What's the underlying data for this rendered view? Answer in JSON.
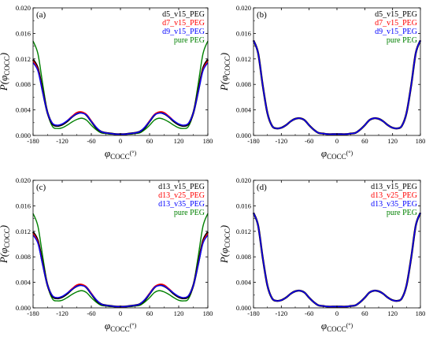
{
  "chart_data": [
    {
      "type": "line",
      "panel_label": "(a)",
      "x_ticks": [
        "-180",
        "-120",
        "-60",
        "0",
        "60",
        "120",
        "180"
      ],
      "y_ticks": [
        "0.000",
        "0.004",
        "0.008",
        "0.012",
        "0.016",
        "0.020"
      ],
      "xlim": [
        -180,
        180
      ],
      "ylim": [
        0,
        0.02
      ],
      "xlabel_main": "φ",
      "xlabel_sub": "COCC",
      "xlabel_unit": "(°)",
      "ylabel_main": "P(φ",
      "ylabel_sub": "COCC",
      "ylabel_close": ")",
      "legend_position": "top-right",
      "x": [
        -180,
        -170,
        -160,
        -150,
        -140,
        -130,
        -120,
        -110,
        -100,
        -90,
        -80,
        -70,
        -60,
        -50,
        -40,
        -30,
        -20,
        -10,
        0,
        10,
        20,
        30,
        40,
        50,
        60,
        70,
        80,
        90,
        100,
        110,
        120,
        130,
        140,
        150,
        160,
        170,
        180
      ],
      "series": [
        {
          "name": "d5_v15_PEG",
          "color": "#000000",
          "values": [
            0.0119,
            0.0105,
            0.0069,
            0.0035,
            0.0018,
            0.0015,
            0.0017,
            0.0022,
            0.0029,
            0.0034,
            0.0036,
            0.0032,
            0.0022,
            0.0012,
            0.0006,
            0.0004,
            0.0003,
            0.0002,
            0.0002,
            0.0002,
            0.0003,
            0.0004,
            0.0006,
            0.0012,
            0.0022,
            0.0032,
            0.0036,
            0.0034,
            0.0029,
            0.0022,
            0.0017,
            0.0015,
            0.0018,
            0.0035,
            0.0069,
            0.0105,
            0.0119
          ]
        },
        {
          "name": "d7_v15_PEG",
          "color": "#ff0000",
          "values": [
            0.0117,
            0.0103,
            0.0068,
            0.0035,
            0.0019,
            0.0016,
            0.0018,
            0.0023,
            0.003,
            0.0036,
            0.0037,
            0.0033,
            0.0023,
            0.0013,
            0.0006,
            0.0004,
            0.0003,
            0.0002,
            0.0002,
            0.0002,
            0.0003,
            0.0004,
            0.0006,
            0.0013,
            0.0023,
            0.0033,
            0.0037,
            0.0036,
            0.003,
            0.0023,
            0.0018,
            0.0016,
            0.0019,
            0.0035,
            0.0068,
            0.0103,
            0.0117
          ]
        },
        {
          "name": "d9_v15_PEG",
          "color": "#0000ff",
          "values": [
            0.0114,
            0.0101,
            0.0067,
            0.0035,
            0.0019,
            0.0016,
            0.0018,
            0.0023,
            0.0029,
            0.0034,
            0.0035,
            0.0032,
            0.0022,
            0.0013,
            0.0006,
            0.0004,
            0.0003,
            0.0002,
            0.0002,
            0.0002,
            0.0003,
            0.0004,
            0.0006,
            0.0013,
            0.0022,
            0.0032,
            0.0035,
            0.0034,
            0.0029,
            0.0023,
            0.0018,
            0.0016,
            0.0019,
            0.0035,
            0.0067,
            0.0101,
            0.0114
          ]
        },
        {
          "name": "pure PEG",
          "color": "#008000",
          "values": [
            0.0148,
            0.0128,
            0.008,
            0.0035,
            0.0014,
            0.0011,
            0.0012,
            0.0016,
            0.0021,
            0.0025,
            0.0027,
            0.0024,
            0.0016,
            0.0009,
            0.0004,
            0.0003,
            0.0002,
            0.0002,
            0.0002,
            0.0002,
            0.0002,
            0.0003,
            0.0004,
            0.0009,
            0.0016,
            0.0024,
            0.0027,
            0.0025,
            0.0021,
            0.0016,
            0.0012,
            0.0011,
            0.0014,
            0.0035,
            0.008,
            0.0128,
            0.0148
          ]
        }
      ]
    },
    {
      "type": "line",
      "panel_label": "(b)",
      "x_ticks": [
        "-180",
        "-120",
        "-60",
        "0",
        "60",
        "120",
        "180"
      ],
      "y_ticks": [
        "0.000",
        "0.004",
        "0.008",
        "0.012",
        "0.016",
        "0.020"
      ],
      "xlim": [
        -180,
        180
      ],
      "ylim": [
        0,
        0.02
      ],
      "xlabel_main": "φ",
      "xlabel_sub": "COCC",
      "xlabel_unit": "(°)",
      "ylabel_main": "P(φ",
      "ylabel_sub": "COCC",
      "ylabel_close": ")",
      "legend_position": "top-right",
      "x": [
        -180,
        -170,
        -160,
        -150,
        -140,
        -130,
        -120,
        -110,
        -100,
        -90,
        -80,
        -70,
        -60,
        -50,
        -40,
        -30,
        -20,
        -10,
        0,
        10,
        20,
        30,
        40,
        50,
        60,
        70,
        80,
        90,
        100,
        110,
        120,
        130,
        140,
        150,
        160,
        170,
        180
      ],
      "series": [
        {
          "name": "d5_v15_PEG",
          "color": "#000000",
          "values": [
            0.0149,
            0.0129,
            0.0078,
            0.0035,
            0.0015,
            0.0011,
            0.0012,
            0.0016,
            0.0022,
            0.0026,
            0.0027,
            0.0024,
            0.0016,
            0.0009,
            0.0004,
            0.0003,
            0.0002,
            0.0002,
            0.0002,
            0.0002,
            0.0002,
            0.0003,
            0.0004,
            0.0009,
            0.0016,
            0.0024,
            0.0027,
            0.0026,
            0.0022,
            0.0016,
            0.0012,
            0.0011,
            0.0015,
            0.0035,
            0.0078,
            0.0129,
            0.0149
          ]
        },
        {
          "name": "d7_v15_PEG",
          "color": "#ff0000",
          "values": [
            0.0149,
            0.0129,
            0.0078,
            0.0035,
            0.0015,
            0.0011,
            0.0012,
            0.0016,
            0.0022,
            0.0026,
            0.0027,
            0.0024,
            0.0016,
            0.0009,
            0.0004,
            0.0003,
            0.0002,
            0.0002,
            0.0002,
            0.0002,
            0.0002,
            0.0003,
            0.0004,
            0.0009,
            0.0016,
            0.0024,
            0.0027,
            0.0026,
            0.0022,
            0.0016,
            0.0012,
            0.0011,
            0.0015,
            0.0035,
            0.0078,
            0.0129,
            0.0149
          ]
        },
        {
          "name": "d9_v15_PEG",
          "color": "#0000ff",
          "values": [
            0.0149,
            0.0129,
            0.0078,
            0.0035,
            0.0015,
            0.0011,
            0.0012,
            0.0016,
            0.0022,
            0.0026,
            0.0027,
            0.0024,
            0.0016,
            0.0009,
            0.0004,
            0.0003,
            0.0002,
            0.0002,
            0.0002,
            0.0002,
            0.0002,
            0.0003,
            0.0004,
            0.0009,
            0.0016,
            0.0024,
            0.0027,
            0.0026,
            0.0022,
            0.0016,
            0.0012,
            0.0011,
            0.0015,
            0.0035,
            0.0078,
            0.0129,
            0.0149
          ]
        },
        {
          "name": "pure PEG",
          "color": "#008000",
          "values": [
            0.0149,
            0.0129,
            0.0078,
            0.0035,
            0.0015,
            0.0011,
            0.0012,
            0.0016,
            0.0022,
            0.0026,
            0.0027,
            0.0024,
            0.0016,
            0.0009,
            0.0004,
            0.0003,
            0.0002,
            0.0002,
            0.0002,
            0.0002,
            0.0002,
            0.0003,
            0.0004,
            0.0009,
            0.0016,
            0.0024,
            0.0027,
            0.0026,
            0.0022,
            0.0016,
            0.0012,
            0.0011,
            0.0015,
            0.0035,
            0.0078,
            0.0129,
            0.0149
          ]
        }
      ]
    },
    {
      "type": "line",
      "panel_label": "(c)",
      "x_ticks": [
        "-180",
        "-120",
        "-60",
        "0",
        "60",
        "120",
        "180"
      ],
      "y_ticks": [
        "0.000",
        "0.004",
        "0.008",
        "0.012",
        "0.016",
        "0.020"
      ],
      "xlim": [
        -180,
        180
      ],
      "ylim": [
        0,
        0.02
      ],
      "xlabel_main": "φ",
      "xlabel_sub": "COCC",
      "xlabel_unit": "(°)",
      "ylabel_main": "P(φ",
      "ylabel_sub": "COCC",
      "ylabel_close": ")",
      "legend_position": "top-right",
      "x": [
        -180,
        -170,
        -160,
        -150,
        -140,
        -130,
        -120,
        -110,
        -100,
        -90,
        -80,
        -70,
        -60,
        -50,
        -40,
        -30,
        -20,
        -10,
        0,
        10,
        20,
        30,
        40,
        50,
        60,
        70,
        80,
        90,
        100,
        110,
        120,
        130,
        140,
        150,
        160,
        170,
        180
      ],
      "series": [
        {
          "name": "d13_v15_PEG",
          "color": "#000000",
          "values": [
            0.0119,
            0.0105,
            0.0069,
            0.0035,
            0.0018,
            0.0015,
            0.0017,
            0.0022,
            0.0029,
            0.0034,
            0.0036,
            0.0032,
            0.0022,
            0.0012,
            0.0006,
            0.0004,
            0.0003,
            0.0002,
            0.0002,
            0.0002,
            0.0003,
            0.0004,
            0.0006,
            0.0012,
            0.0022,
            0.0032,
            0.0036,
            0.0034,
            0.0029,
            0.0022,
            0.0017,
            0.0015,
            0.0018,
            0.0035,
            0.0069,
            0.0105,
            0.0119
          ]
        },
        {
          "name": "d13_v25_PEG",
          "color": "#ff0000",
          "values": [
            0.0117,
            0.0103,
            0.0068,
            0.0035,
            0.0019,
            0.0016,
            0.0018,
            0.0023,
            0.003,
            0.0036,
            0.0037,
            0.0033,
            0.0023,
            0.0013,
            0.0006,
            0.0004,
            0.0003,
            0.0002,
            0.0002,
            0.0002,
            0.0003,
            0.0004,
            0.0006,
            0.0013,
            0.0023,
            0.0033,
            0.0037,
            0.0036,
            0.003,
            0.0023,
            0.0018,
            0.0016,
            0.0019,
            0.0035,
            0.0068,
            0.0103,
            0.0117
          ]
        },
        {
          "name": "d13_v35_PEG",
          "color": "#0000ff",
          "values": [
            0.0114,
            0.0101,
            0.0067,
            0.0035,
            0.0019,
            0.0016,
            0.0018,
            0.0023,
            0.0029,
            0.0034,
            0.0035,
            0.0032,
            0.0022,
            0.0013,
            0.0006,
            0.0004,
            0.0003,
            0.0002,
            0.0002,
            0.0002,
            0.0003,
            0.0004,
            0.0006,
            0.0013,
            0.0022,
            0.0032,
            0.0035,
            0.0034,
            0.0029,
            0.0023,
            0.0018,
            0.0016,
            0.0019,
            0.0035,
            0.0067,
            0.0101,
            0.0114
          ]
        },
        {
          "name": "pure PEG",
          "color": "#008000",
          "values": [
            0.0148,
            0.0128,
            0.008,
            0.0035,
            0.0014,
            0.0011,
            0.0012,
            0.0016,
            0.0021,
            0.0025,
            0.0027,
            0.0024,
            0.0016,
            0.0009,
            0.0004,
            0.0003,
            0.0002,
            0.0002,
            0.0002,
            0.0002,
            0.0002,
            0.0003,
            0.0004,
            0.0009,
            0.0016,
            0.0024,
            0.0027,
            0.0025,
            0.0021,
            0.0016,
            0.0012,
            0.0011,
            0.0014,
            0.0035,
            0.008,
            0.0128,
            0.0148
          ]
        }
      ]
    },
    {
      "type": "line",
      "panel_label": "(d)",
      "x_ticks": [
        "-180",
        "-120",
        "-60",
        "0",
        "60",
        "120",
        "180"
      ],
      "y_ticks": [
        "0.000",
        "0.004",
        "0.008",
        "0.012",
        "0.016",
        "0.020"
      ],
      "xlim": [
        -180,
        180
      ],
      "ylim": [
        0,
        0.02
      ],
      "xlabel_main": "φ",
      "xlabel_sub": "COCC",
      "xlabel_unit": "(°)",
      "ylabel_main": "P(φ",
      "ylabel_sub": "COCC",
      "ylabel_close": ")",
      "legend_position": "top-right",
      "x": [
        -180,
        -170,
        -160,
        -150,
        -140,
        -130,
        -120,
        -110,
        -100,
        -90,
        -80,
        -70,
        -60,
        -50,
        -40,
        -30,
        -20,
        -10,
        0,
        10,
        20,
        30,
        40,
        50,
        60,
        70,
        80,
        90,
        100,
        110,
        120,
        130,
        140,
        150,
        160,
        170,
        180
      ],
      "series": [
        {
          "name": "d13_v15_PEG",
          "color": "#000000",
          "values": [
            0.0149,
            0.0129,
            0.0078,
            0.0035,
            0.0015,
            0.0011,
            0.0012,
            0.0016,
            0.0022,
            0.0026,
            0.0027,
            0.0024,
            0.0016,
            0.0009,
            0.0004,
            0.0003,
            0.0002,
            0.0002,
            0.0002,
            0.0002,
            0.0002,
            0.0003,
            0.0004,
            0.0009,
            0.0016,
            0.0024,
            0.0027,
            0.0026,
            0.0022,
            0.0016,
            0.0012,
            0.0011,
            0.0015,
            0.0035,
            0.0078,
            0.0129,
            0.0149
          ]
        },
        {
          "name": "d13_v25_PEG",
          "color": "#ff0000",
          "values": [
            0.0149,
            0.0129,
            0.0078,
            0.0035,
            0.0015,
            0.0011,
            0.0012,
            0.0016,
            0.0022,
            0.0026,
            0.0027,
            0.0024,
            0.0016,
            0.0009,
            0.0004,
            0.0003,
            0.0002,
            0.0002,
            0.0002,
            0.0002,
            0.0002,
            0.0003,
            0.0004,
            0.0009,
            0.0016,
            0.0024,
            0.0027,
            0.0026,
            0.0022,
            0.0016,
            0.0012,
            0.0011,
            0.0015,
            0.0035,
            0.0078,
            0.0129,
            0.0149
          ]
        },
        {
          "name": "d13_v35_PEG",
          "color": "#0000ff",
          "values": [
            0.0149,
            0.0129,
            0.0078,
            0.0035,
            0.0015,
            0.0011,
            0.0012,
            0.0016,
            0.0022,
            0.0026,
            0.0027,
            0.0024,
            0.0016,
            0.0009,
            0.0004,
            0.0003,
            0.0002,
            0.0002,
            0.0002,
            0.0002,
            0.0002,
            0.0003,
            0.0004,
            0.0009,
            0.0016,
            0.0024,
            0.0027,
            0.0026,
            0.0022,
            0.0016,
            0.0012,
            0.0011,
            0.0015,
            0.0035,
            0.0078,
            0.0129,
            0.0149
          ]
        },
        {
          "name": "pure PEG",
          "color": "#008000",
          "values": [
            0.0149,
            0.0129,
            0.0078,
            0.0035,
            0.0015,
            0.0011,
            0.0012,
            0.0016,
            0.0022,
            0.0026,
            0.0027,
            0.0024,
            0.0016,
            0.0009,
            0.0004,
            0.0003,
            0.0002,
            0.0002,
            0.0002,
            0.0002,
            0.0002,
            0.0003,
            0.0004,
            0.0009,
            0.0016,
            0.0024,
            0.0027,
            0.0026,
            0.0022,
            0.0016,
            0.0012,
            0.0011,
            0.0015,
            0.0035,
            0.0078,
            0.0129,
            0.0149
          ]
        }
      ]
    }
  ]
}
